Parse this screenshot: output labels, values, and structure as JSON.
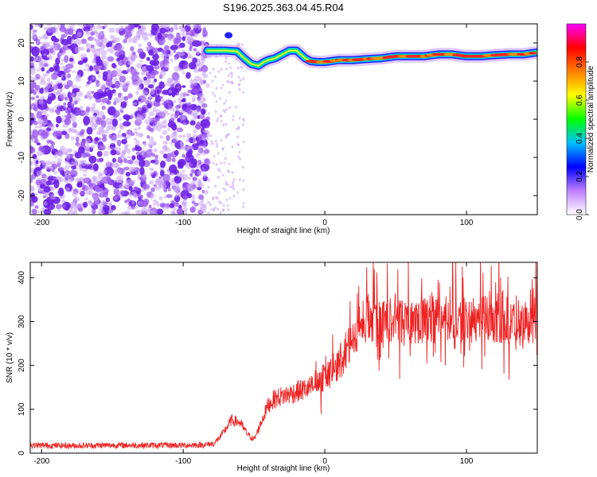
{
  "title": "S196.2025.363.04.45.R04",
  "colors": {
    "background": "#ffffff",
    "snr_line": "#ee2222",
    "noise": "#8833ee",
    "axis": "#000000"
  },
  "chart_data": [
    {
      "type": "heatmap",
      "name": "spectrogram",
      "title": "S196.2025.363.04.45.R04",
      "xlabel": "Height of straight line (km)",
      "ylabel": "Frequency (Hz)",
      "xlim": [
        -208,
        150
      ],
      "ylim": [
        -25,
        25
      ],
      "xticks": [
        -200,
        -100,
        0,
        100
      ],
      "yticks": [
        -20,
        -10,
        0,
        10,
        20
      ],
      "noise_region_x": [
        -208,
        -82
      ],
      "signal_trace": {
        "x": [
          -83,
          -70,
          -62,
          -57,
          -52,
          -47,
          -43,
          -40,
          -35,
          -30,
          -25,
          -20,
          -17,
          -14,
          -10,
          -5,
          0,
          10,
          20,
          30,
          40,
          50,
          60,
          70,
          80,
          90,
          100,
          110,
          120,
          130,
          140,
          150
        ],
        "y": [
          18,
          18,
          17.8,
          16,
          14.5,
          14,
          15,
          15.5,
          16,
          17,
          18,
          18,
          17,
          16,
          15.2,
          15,
          15,
          15.5,
          15.5,
          15.8,
          16,
          16.5,
          16.5,
          16.5,
          17,
          17,
          16.5,
          16.5,
          16.8,
          17,
          17,
          17.5
        ]
      }
    },
    {
      "type": "colorbar",
      "name": "amplitude-colorbar",
      "label": "Normalized spectral amplitude",
      "range": [
        0,
        1
      ],
      "ticks": [
        0.0,
        0.2,
        0.4,
        0.6,
        0.8
      ],
      "tick_labels": [
        "0.0",
        "0.2",
        "0.4",
        "0.6",
        "0.8"
      ],
      "colormap": [
        "#ffffff",
        "#c080ff",
        "#0000ff",
        "#00c0ff",
        "#00ff00",
        "#ffff00",
        "#ff8000",
        "#ff0000",
        "#ff00ff"
      ]
    },
    {
      "type": "line",
      "name": "snr-plot",
      "xlabel": "Height of straight line (km)",
      "ylabel": "SNR (10 * v/v)",
      "xlim": [
        -208,
        150
      ],
      "ylim": [
        0,
        435
      ],
      "xticks": [
        -200,
        -100,
        0,
        100
      ],
      "yticks": [
        0,
        100,
        200,
        300,
        400
      ],
      "series": [
        {
          "name": "SNR",
          "x": [
            -208,
            -180,
            -150,
            -120,
            -100,
            -85,
            -78,
            -72,
            -66,
            -60,
            -55,
            -50,
            -45,
            -40,
            -35,
            -30,
            -25,
            -20,
            -15,
            -10,
            -5,
            0,
            5,
            10,
            15,
            20,
            25,
            30,
            40,
            50,
            60,
            70,
            80,
            90,
            100,
            110,
            120,
            130,
            140,
            150
          ],
          "values": [
            18,
            17,
            18,
            18,
            18,
            19,
            22,
            45,
            75,
            70,
            45,
            30,
            70,
            110,
            125,
            130,
            135,
            140,
            145,
            150,
            160,
            170,
            185,
            200,
            230,
            265,
            285,
            295,
            300,
            305,
            305,
            305,
            305,
            305,
            305,
            305,
            305,
            305,
            305,
            305
          ]
        }
      ]
    }
  ]
}
